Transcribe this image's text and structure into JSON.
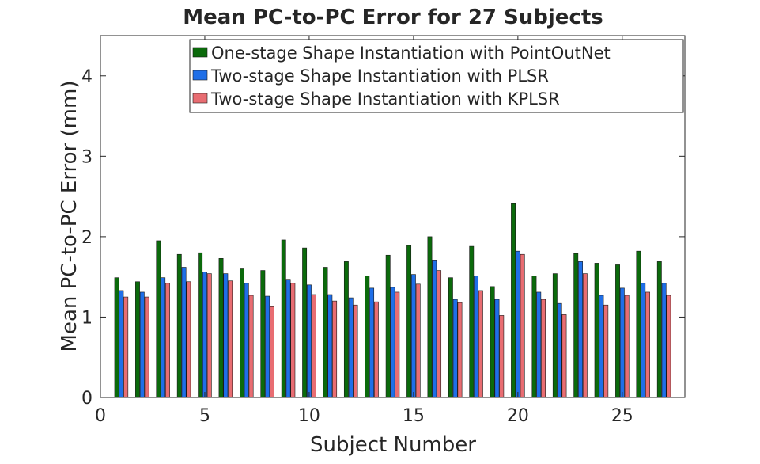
{
  "chart_data": {
    "type": "bar",
    "title": "Mean PC-to-PC Error for 27 Subjects",
    "xlabel": "Subject Number",
    "ylabel": "Mean PC-to-PC Error (mm)",
    "xlim": [
      0,
      28
    ],
    "ylim": [
      0,
      4.5
    ],
    "x_ticks": [
      "0",
      "5",
      "10",
      "15",
      "20",
      "25"
    ],
    "y_ticks": [
      "0",
      "1",
      "2",
      "3",
      "4"
    ],
    "grid": false,
    "legend_position": "top-right",
    "x": [
      1,
      2,
      3,
      4,
      5,
      6,
      7,
      8,
      9,
      10,
      11,
      12,
      13,
      14,
      15,
      16,
      17,
      18,
      19,
      20,
      21,
      22,
      23,
      24,
      25,
      26,
      27
    ],
    "series": [
      {
        "name": "One-stage Shape Instantiation with PointOutNet",
        "color": "#0b6a0b",
        "values": [
          1.49,
          1.44,
          1.95,
          1.78,
          1.8,
          1.73,
          1.6,
          1.58,
          1.96,
          1.86,
          1.62,
          1.69,
          1.51,
          1.77,
          1.89,
          2.0,
          1.49,
          1.88,
          1.38,
          2.41,
          1.51,
          1.54,
          1.79,
          1.67,
          1.65,
          1.82,
          1.69
        ]
      },
      {
        "name": "Two-stage Shape Instantiation with PLSR",
        "color": "#1f6fe8",
        "values": [
          1.33,
          1.31,
          1.49,
          1.62,
          1.56,
          1.54,
          1.42,
          1.26,
          1.47,
          1.4,
          1.28,
          1.24,
          1.36,
          1.37,
          1.53,
          1.71,
          1.22,
          1.51,
          1.22,
          1.82,
          1.31,
          1.17,
          1.69,
          1.27,
          1.36,
          1.42,
          1.42
        ]
      },
      {
        "name": "Two-stage Shape Instantiation with KPLSR",
        "color": "#e86d72",
        "values": [
          1.25,
          1.25,
          1.42,
          1.44,
          1.54,
          1.45,
          1.27,
          1.13,
          1.42,
          1.28,
          1.2,
          1.15,
          1.19,
          1.31,
          1.41,
          1.58,
          1.18,
          1.33,
          1.02,
          1.78,
          1.22,
          1.03,
          1.54,
          1.15,
          1.27,
          1.31,
          1.27
        ]
      }
    ]
  }
}
